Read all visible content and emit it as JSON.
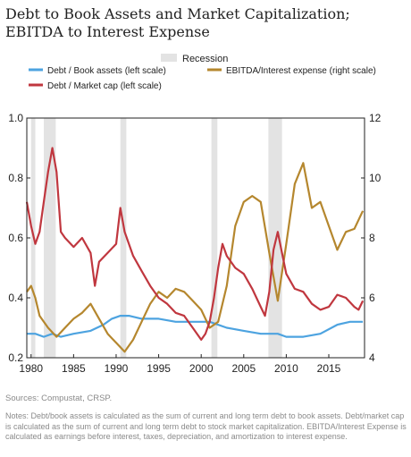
{
  "title": {
    "line1": "Debt to Book Assets and Market Capitalization;",
    "line2": "EBITDA to Interest Expense"
  },
  "sources": "Sources: Compustat, CRSP.",
  "notes": "Notes: Debt/book assets is calculated as the sum of current and long term debt to book assets. Debt/market cap is calculated as the sum of current and long term debt to stock market capitalization. EBITDA/Interest Expense is calculated as earnings before interest, taxes, depreciation, and amortization to interest expense.",
  "chart_data": {
    "type": "line",
    "xlim": [
      1979.5,
      2019.2
    ],
    "ylim_left": [
      0.2,
      1.0
    ],
    "ylim_right": [
      4,
      12
    ],
    "xticks": [
      1980,
      1985,
      1990,
      1995,
      2000,
      2005,
      2010,
      2015
    ],
    "yticks_left": [
      "0.2",
      "0.4",
      "0.6",
      "0.8",
      "1.0"
    ],
    "yticks_right": [
      "4",
      "6",
      "8",
      "10",
      "12"
    ],
    "recessions": [
      [
        1980.0,
        1980.5
      ],
      [
        1981.5,
        1982.9
      ],
      [
        1990.5,
        1991.2
      ],
      [
        2001.2,
        2001.9
      ],
      [
        2007.9,
        2009.5
      ]
    ],
    "recession_label": "Recession",
    "colors": {
      "recession": "#e3e3e3",
      "book": "#4da3e0",
      "market": "#c0373f",
      "ebitda": "#b5872e"
    },
    "series": [
      {
        "name": "Debt / Book assets (left scale)",
        "axis": "left",
        "x": [
          1979.5,
          1980.5,
          1981.5,
          1982.5,
          1983.5,
          1985,
          1987,
          1988.5,
          1989.5,
          1990.5,
          1991.5,
          1993,
          1995,
          1997,
          1999,
          2001,
          2003,
          2005,
          2007,
          2009,
          2010,
          2012,
          2014,
          2016,
          2017.5,
          2019
        ],
        "y": [
          0.28,
          0.28,
          0.27,
          0.28,
          0.27,
          0.28,
          0.29,
          0.31,
          0.33,
          0.34,
          0.34,
          0.33,
          0.33,
          0.32,
          0.32,
          0.32,
          0.3,
          0.29,
          0.28,
          0.28,
          0.27,
          0.27,
          0.28,
          0.31,
          0.32,
          0.32
        ]
      },
      {
        "name": "Debt / Market cap  (left scale)",
        "axis": "left",
        "x": [
          1979.5,
          1980,
          1980.5,
          1981,
          1981.5,
          1982,
          1982.5,
          1983,
          1983.5,
          1984,
          1985,
          1986,
          1987,
          1987.5,
          1988,
          1989,
          1990,
          1990.5,
          1991,
          1992,
          1993,
          1994,
          1995,
          1996,
          1997,
          1998,
          1999,
          2000,
          2000.5,
          2001,
          2001.5,
          2002,
          2002.5,
          2003,
          2004,
          2005,
          2006,
          2007,
          2007.5,
          2008,
          2008.5,
          2009,
          2009.5,
          2010,
          2011,
          2012,
          2013,
          2014,
          2015,
          2016,
          2017,
          2018,
          2018.5,
          2019
        ],
        "y": [
          0.72,
          0.64,
          0.58,
          0.62,
          0.72,
          0.82,
          0.9,
          0.82,
          0.62,
          0.6,
          0.57,
          0.6,
          0.55,
          0.44,
          0.52,
          0.55,
          0.58,
          0.7,
          0.62,
          0.54,
          0.49,
          0.44,
          0.4,
          0.38,
          0.35,
          0.34,
          0.3,
          0.26,
          0.28,
          0.32,
          0.4,
          0.5,
          0.58,
          0.54,
          0.5,
          0.48,
          0.43,
          0.37,
          0.34,
          0.42,
          0.56,
          0.62,
          0.55,
          0.48,
          0.43,
          0.42,
          0.38,
          0.36,
          0.37,
          0.41,
          0.4,
          0.37,
          0.36,
          0.39
        ]
      },
      {
        "name": "EBITDA/Interest expense (right scale)",
        "axis": "right",
        "x": [
          1979.5,
          1980,
          1980.5,
          1981,
          1982,
          1983,
          1984,
          1985,
          1986,
          1987,
          1988,
          1989,
          1990,
          1991,
          1992,
          1993,
          1994,
          1995,
          1996,
          1997,
          1998,
          1999,
          2000,
          2001,
          2002,
          2003,
          2004,
          2005,
          2006,
          2007,
          2008,
          2009,
          2010,
          2011,
          2012,
          2013,
          2014,
          2015,
          2016,
          2017,
          2018,
          2019
        ],
        "y": [
          6.2,
          6.4,
          6.0,
          5.4,
          5.0,
          4.7,
          5.0,
          5.3,
          5.5,
          5.8,
          5.3,
          4.8,
          4.5,
          4.2,
          4.6,
          5.2,
          5.8,
          6.2,
          6.0,
          6.3,
          6.2,
          5.9,
          5.6,
          5.0,
          5.2,
          6.4,
          8.4,
          9.2,
          9.4,
          9.2,
          7.5,
          5.9,
          7.8,
          9.8,
          10.5,
          9.0,
          9.2,
          8.4,
          7.6,
          8.2,
          8.3,
          8.9
        ]
      }
    ]
  }
}
